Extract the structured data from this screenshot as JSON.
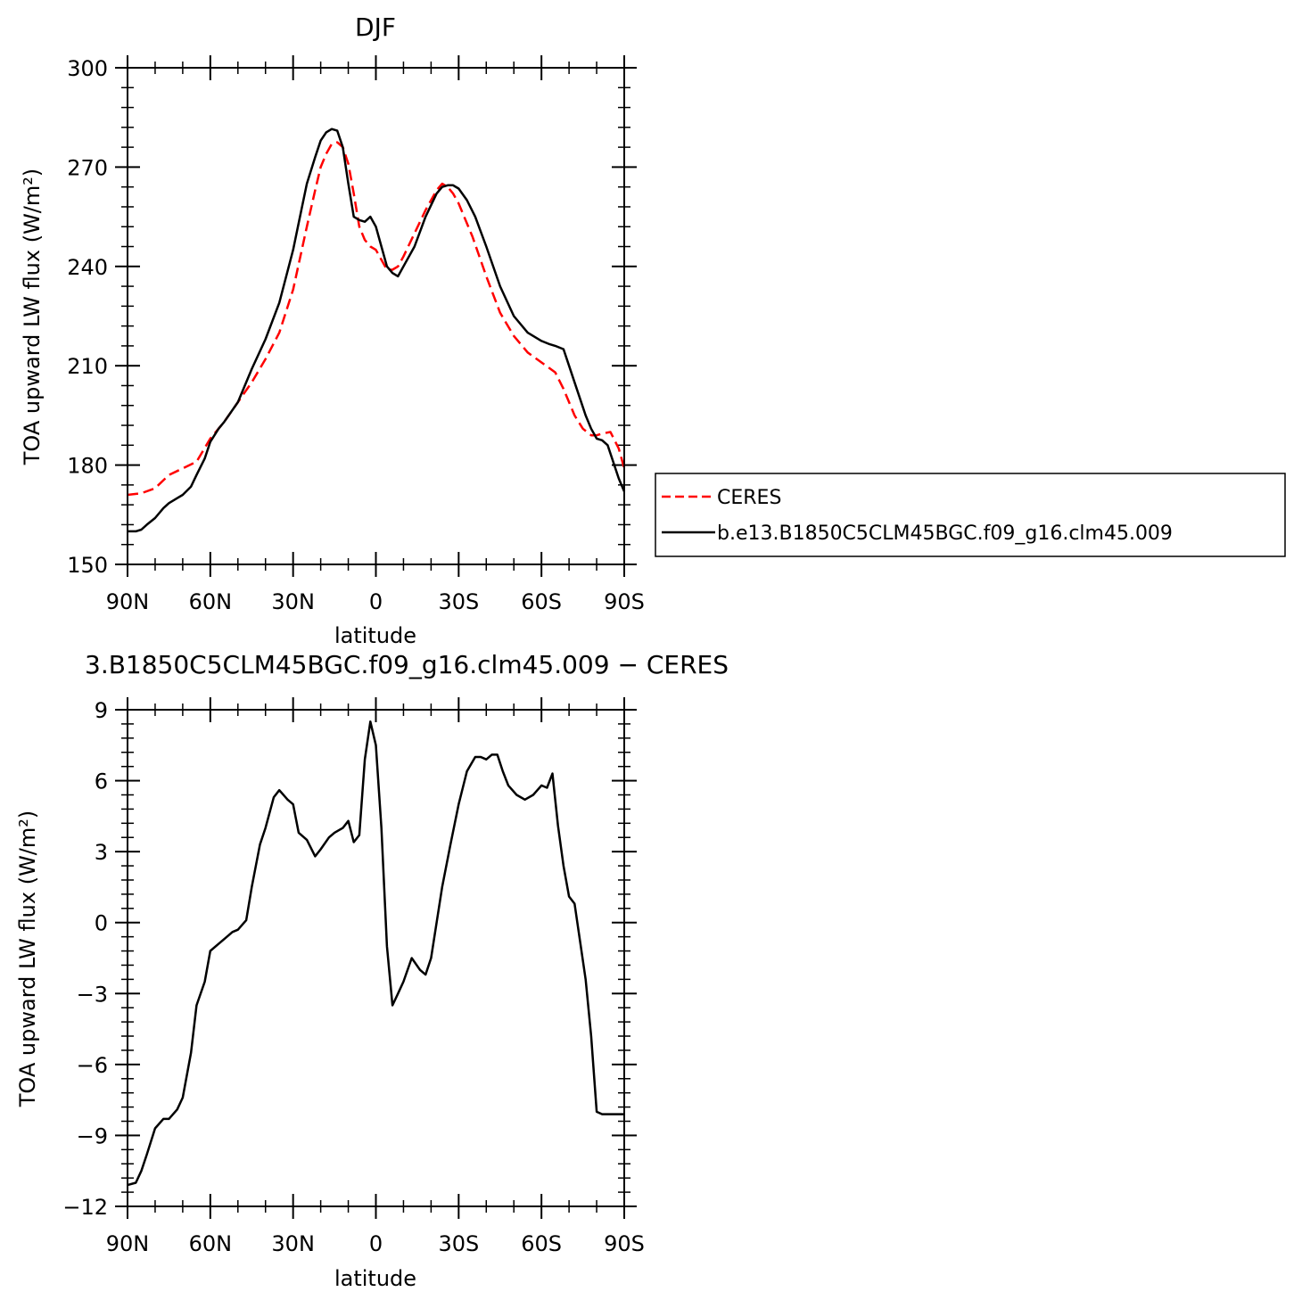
{
  "chart_data": [
    {
      "type": "line",
      "title": "DJF",
      "xlabel": "latitude",
      "ylabel": "TOA upward LW flux (W/m²)",
      "x_tick_labels": [
        "90N",
        "60N",
        "30N",
        "0",
        "30S",
        "60S",
        "90S"
      ],
      "x_tick_values": [
        90,
        60,
        30,
        0,
        -30,
        -60,
        -90
      ],
      "xlim": [
        90,
        -90
      ],
      "ylim": [
        150,
        300
      ],
      "y_ticks": [
        150,
        180,
        210,
        240,
        270,
        300
      ],
      "grid": false,
      "legend_position": "right",
      "series": [
        {
          "name": "CERES",
          "color": "#ff0000",
          "dash": true,
          "x": [
            90,
            85,
            80,
            75,
            70,
            65,
            60,
            55,
            50,
            45,
            40,
            35,
            30,
            25,
            22,
            20,
            18,
            16,
            14,
            12,
            10,
            8,
            6,
            4,
            2,
            0,
            -2,
            -4,
            -6,
            -8,
            -10,
            -14,
            -18,
            -22,
            -24,
            -26,
            -28,
            -30,
            -35,
            -40,
            -45,
            -50,
            -55,
            -60,
            -65,
            -68,
            -70,
            -72,
            -75,
            -78,
            -80,
            -82,
            -85,
            -88,
            -90
          ],
          "y": [
            171,
            171.5,
            173,
            177,
            179,
            181,
            188,
            193,
            199,
            205,
            212,
            220,
            233,
            252,
            263,
            270,
            274,
            277,
            277.5,
            276,
            271,
            262,
            252,
            248,
            246,
            245,
            242,
            239,
            239,
            240,
            243,
            250,
            257,
            263,
            265,
            264,
            262,
            259,
            249,
            237,
            226,
            219,
            214,
            211,
            208,
            203,
            199,
            195,
            191,
            189,
            189,
            189.5,
            190,
            185,
            179
          ]
        },
        {
          "name": "b.e13.B1850C5CLM45BGC.f09_g16.clm45.009",
          "color": "#000000",
          "dash": false,
          "x": [
            90,
            87,
            85,
            83,
            80,
            77,
            75,
            72,
            70,
            67,
            65,
            62,
            60,
            57,
            55,
            50,
            45,
            40,
            35,
            30,
            27,
            25,
            22,
            20,
            18,
            16,
            14,
            12,
            10,
            8,
            6,
            4,
            2,
            0,
            -2,
            -4,
            -6,
            -8,
            -10,
            -14,
            -18,
            -22,
            -24,
            -26,
            -28,
            -30,
            -33,
            -36,
            -40,
            -45,
            -50,
            -55,
            -60,
            -63,
            -65,
            -68,
            -70,
            -72,
            -74,
            -76,
            -78,
            -80,
            -82,
            -84,
            -86,
            -88,
            -90
          ],
          "y": [
            160,
            160,
            160.5,
            162,
            164,
            167,
            168.5,
            170,
            171,
            173.5,
            177,
            182,
            187,
            191,
            193,
            199,
            209,
            218,
            229,
            245,
            257,
            265,
            273,
            278,
            280.5,
            281.5,
            281,
            276,
            265,
            255,
            254,
            253.5,
            255,
            252,
            246,
            240,
            238,
            237,
            240,
            246,
            255,
            262,
            264,
            264.5,
            264.5,
            263.5,
            260,
            255,
            246,
            234,
            225,
            220,
            217.5,
            216.5,
            216,
            215,
            210,
            205,
            200,
            195,
            191,
            188,
            187.5,
            186,
            181,
            176,
            172
          ]
        }
      ]
    },
    {
      "type": "line",
      "title": "3.B1850C5CLM45BGC.f09_g16.clm45.009 − CERES",
      "xlabel": "latitude",
      "ylabel": "TOA upward LW flux (W/m²)",
      "x_tick_labels": [
        "90N",
        "60N",
        "30N",
        "0",
        "30S",
        "60S",
        "90S"
      ],
      "x_tick_values": [
        90,
        60,
        30,
        0,
        -30,
        -60,
        -90
      ],
      "xlim": [
        90,
        -90
      ],
      "ylim": [
        -12,
        9
      ],
      "y_ticks": [
        -12,
        -9,
        -6,
        -3,
        0,
        3,
        6,
        9
      ],
      "grid": false,
      "series": [
        {
          "color": "#000000",
          "dash": false,
          "x": [
            90,
            87,
            85,
            83,
            80,
            77,
            75,
            72,
            70,
            67,
            65,
            62,
            60,
            57,
            55,
            52,
            50,
            47,
            45,
            42,
            40,
            37,
            35,
            32,
            30,
            28,
            25,
            22,
            20,
            17,
            15,
            12,
            10,
            8,
            6,
            4,
            2,
            0,
            -2,
            -4,
            -6,
            -8,
            -10,
            -13,
            -16,
            -18,
            -20,
            -22,
            -24,
            -27,
            -30,
            -33,
            -36,
            -38,
            -40,
            -42,
            -44,
            -46,
            -48,
            -51,
            -54,
            -57,
            -60,
            -62,
            -64,
            -66,
            -68,
            -70,
            -72,
            -74,
            -76,
            -78,
            -80,
            -82,
            -84,
            -86,
            -88,
            -90
          ],
          "y": [
            -11.1,
            -11,
            -10.5,
            -9.8,
            -8.7,
            -8.3,
            -8.3,
            -7.9,
            -7.4,
            -5.5,
            -3.5,
            -2.5,
            -1.2,
            -0.9,
            -0.7,
            -0.4,
            -0.3,
            0.1,
            1.5,
            3.3,
            4,
            5.3,
            5.6,
            5.2,
            5,
            3.8,
            3.5,
            2.8,
            3.1,
            3.6,
            3.8,
            4,
            4.3,
            3.4,
            3.7,
            6.9,
            8.5,
            7.5,
            4,
            -1,
            -3.5,
            -3,
            -2.5,
            -1.5,
            -2,
            -2.2,
            -1.5,
            0,
            1.5,
            3.3,
            5,
            6.4,
            7,
            7,
            6.9,
            7.1,
            7.1,
            6.4,
            5.8,
            5.4,
            5.2,
            5.4,
            5.8,
            5.7,
            6.3,
            4.1,
            2.4,
            1.1,
            0.8,
            -0.8,
            -2.4,
            -4.8,
            -8,
            -8.1,
            -8.1,
            -8.1,
            -8.1,
            -8.1
          ]
        }
      ]
    }
  ]
}
